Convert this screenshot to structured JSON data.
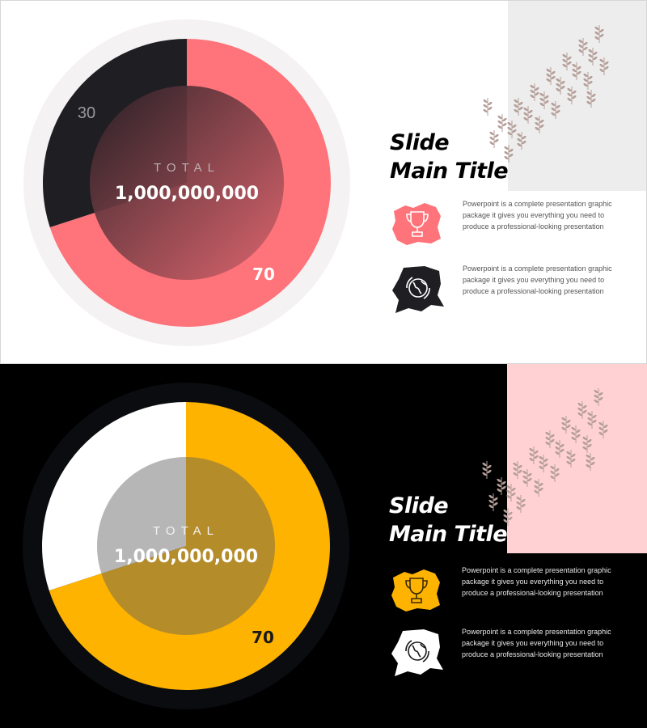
{
  "colors": {
    "slide1_bg": "#ffffff",
    "slide1_accent": "#ff737a",
    "slide1_dark": "#1f1e22",
    "slide1_ring": "#f5f2f3",
    "slide1_corner": "#ededed",
    "slide2_bg": "#000000",
    "slide2_accent": "#feb300",
    "slide2_light": "#ffffff",
    "slide2_ring": "#0a0c10",
    "slide2_corner": "#ffd1d3",
    "leaf": "#b59e98"
  },
  "chart_data": [
    {
      "type": "pie",
      "style": "donut",
      "slices": [
        {
          "value": 70,
          "label": "70",
          "color": "#ff737a"
        },
        {
          "value": 30,
          "label": "30",
          "color": "#1f1e22"
        }
      ],
      "center_label": "TOTAL",
      "center_value": "1,000,000,000"
    },
    {
      "type": "pie",
      "style": "donut",
      "slices": [
        {
          "value": 70,
          "label": "70",
          "color": "#feb300"
        },
        {
          "value": 30,
          "label": "",
          "color": "#ffffff"
        }
      ],
      "center_label": "TOTAL",
      "center_value": "1,000,000,000"
    }
  ],
  "slides": [
    {
      "title_line1": "Slide",
      "title_line2": "Main Title",
      "items": [
        {
          "icon": "trophy-icon",
          "text": "Powerpoint is a complete presentation graphic package it gives you everything you need to produce a professional-looking presentation"
        },
        {
          "icon": "globe-icon",
          "text": "Powerpoint is a complete presentation graphic package it gives you everything you need to produce a professional-looking presentation"
        }
      ]
    },
    {
      "title_line1": "Slide",
      "title_line2": "Main Title",
      "items": [
        {
          "icon": "trophy-icon",
          "text": "Powerpoint is a complete presentation graphic package it gives you everything you need to produce a professional-looking presentation"
        },
        {
          "icon": "globe-icon",
          "text": "Powerpoint is a complete presentation graphic package it gives you everything you need to produce a professional-looking presentation"
        }
      ]
    }
  ]
}
